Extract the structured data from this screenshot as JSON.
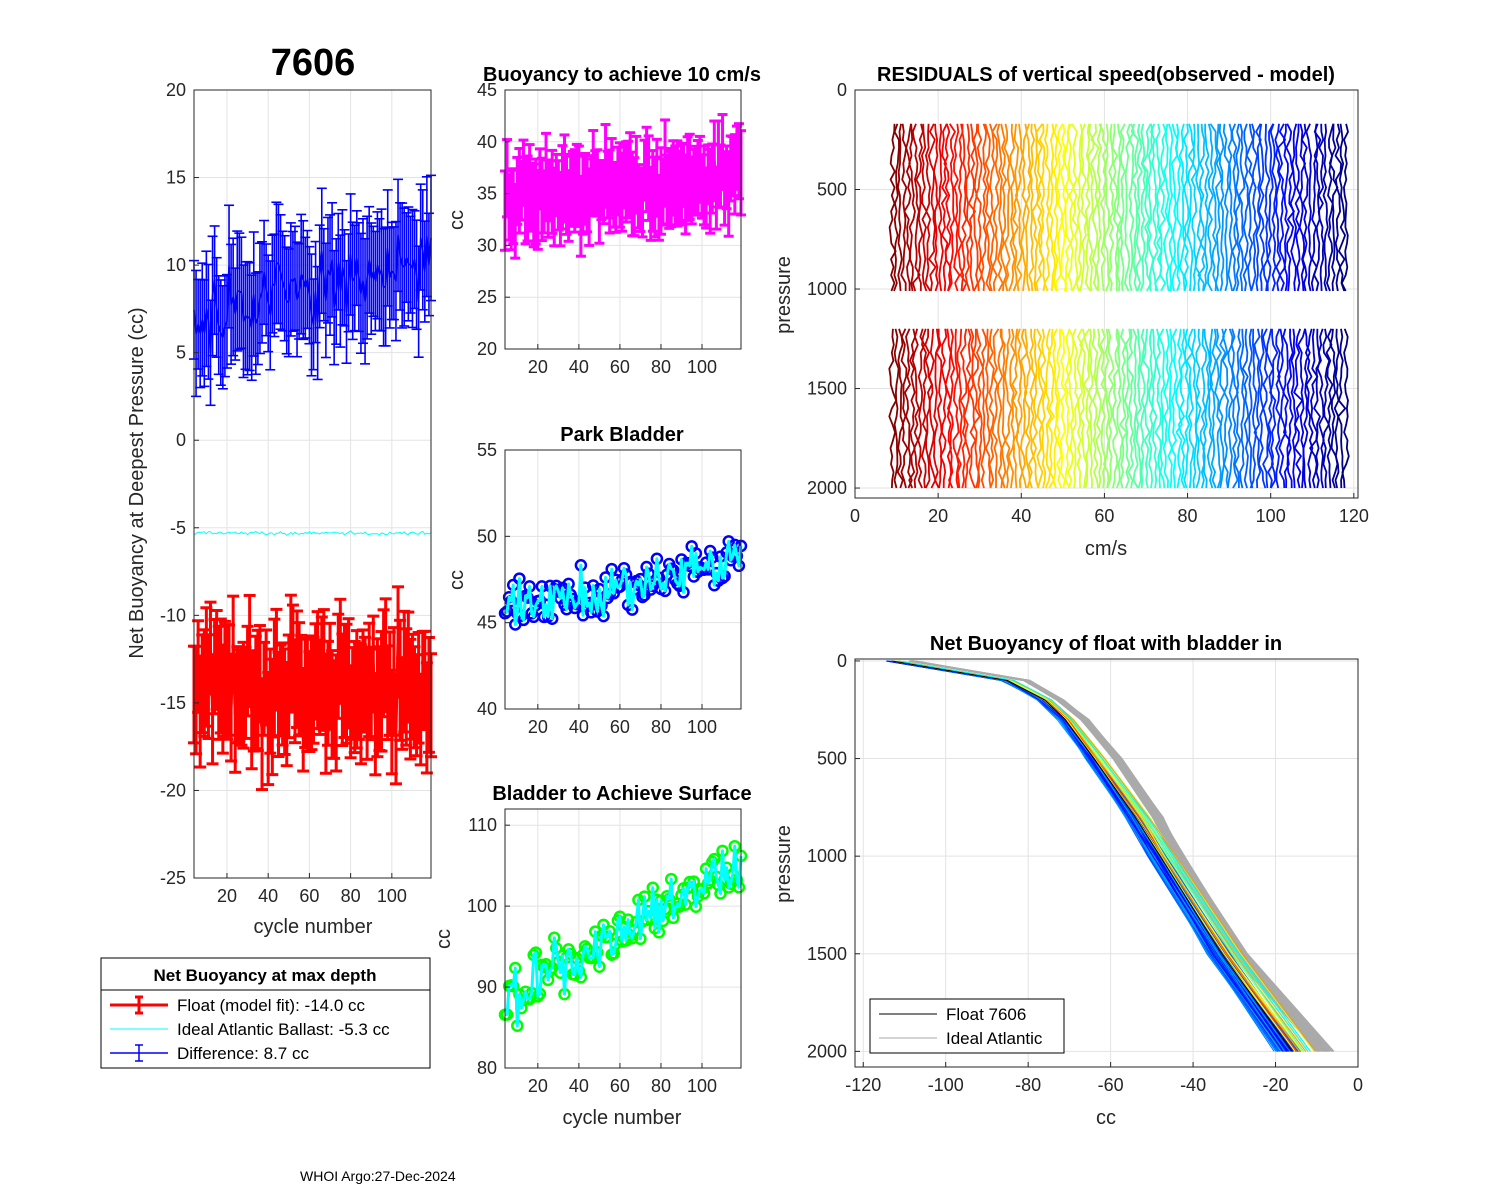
{
  "figure": {
    "float_id": "7606",
    "footer": "WHOI Argo:27-Dec-2024"
  },
  "colors": {
    "float": "#ff0000",
    "ideal": "#00ffff",
    "difference": "#0000ff",
    "buoyancy10": "#ff00ff",
    "park_marker": "#0000ff",
    "park_line": "#00ffff",
    "surface_marker": "#00ff00",
    "surface_line": "#00ffff",
    "ideal_profile": "#aaaaaa",
    "float_profile": "#000000"
  },
  "legend1": {
    "title": "Net Buoyancy at max depth",
    "float_label": "Float (model fit): -14.0 cc",
    "ideal_label": "Ideal Atlantic Ballast:  -5.3 cc",
    "diff_label": "Difference:   8.7 cc"
  },
  "legend2": {
    "float_label": "Float 7606",
    "ideal_label": "Ideal Atlantic"
  },
  "chart_data": [
    {
      "id": "net_buoyancy_max_depth",
      "type": "line",
      "title": "7606",
      "xlabel": "cycle number",
      "ylabel": "Net Buoyancy at Deepest Pressure (cc)",
      "xlim": [
        4,
        119
      ],
      "ylim": [
        -25,
        20
      ],
      "xticks": [
        20,
        40,
        60,
        80,
        100
      ],
      "yticks": [
        -25,
        -20,
        -15,
        -10,
        -5,
        0,
        5,
        10,
        15,
        20
      ],
      "cycles": [
        4,
        119
      ],
      "series": [
        {
          "name": "Float (model fit)",
          "mean": -14.0,
          "spread": 3.2,
          "err": 3.0
        },
        {
          "name": "Ideal Atlantic Ballast",
          "mean": -5.3,
          "spread": 0.15
        },
        {
          "name": "Difference",
          "mean": 8.7,
          "trend": 0.03,
          "spread": 3.0,
          "err": 3.0
        }
      ]
    },
    {
      "id": "buoyancy_10cms",
      "type": "line",
      "title": "Buoyancy to achieve 10 cm/s",
      "xlabel": "",
      "ylabel": "cc",
      "xlim": [
        4,
        119
      ],
      "ylim": [
        20,
        45
      ],
      "xticks": [
        20,
        40,
        60,
        80,
        100
      ],
      "yticks": [
        20,
        25,
        30,
        35,
        40,
        45
      ],
      "series": [
        {
          "name": "buoyancy",
          "mean": 35.5,
          "spread": 2.8,
          "err": 3.5
        }
      ]
    },
    {
      "id": "park_bladder",
      "type": "line",
      "title": "Park Bladder",
      "xlabel": "",
      "ylabel": "cc",
      "xlim": [
        4,
        119
      ],
      "ylim": [
        40,
        55
      ],
      "xticks": [
        20,
        40,
        60,
        80,
        100
      ],
      "yticks": [
        40,
        45,
        50,
        55
      ],
      "series": [
        {
          "name": "park bladder",
          "start": 45.5,
          "end": 49.0,
          "spread": 2.2
        }
      ]
    },
    {
      "id": "bladder_surface",
      "type": "line",
      "title": "Bladder to Achieve Surface",
      "xlabel": "cycle number",
      "ylabel": "cc",
      "xlim": [
        4,
        119
      ],
      "ylim": [
        80,
        112
      ],
      "xticks": [
        20,
        40,
        60,
        80,
        100
      ],
      "yticks": [
        80,
        90,
        100,
        110
      ],
      "series": [
        {
          "name": "surface bladder",
          "start": 88.5,
          "end": 105.0,
          "spread": 5.0
        }
      ]
    },
    {
      "id": "residuals",
      "type": "line",
      "title": "RESIDUALS of vertical speed(observed - model)",
      "xlabel": "cm/s",
      "ylabel": "pressure",
      "xlim": [
        0,
        121
      ],
      "ylim": [
        2050,
        0
      ],
      "xticks": [
        0,
        20,
        40,
        60,
        80,
        100,
        120
      ],
      "yticks": [
        0,
        500,
        1000,
        1500,
        2000
      ],
      "profiles": 115,
      "segments": [
        [
          170,
          1020
        ],
        [
          1200,
          2000
        ]
      ],
      "offset_range": [
        9,
        118
      ]
    },
    {
      "id": "net_buoyancy_profile",
      "type": "line",
      "title": "Net Buoyancy of float with bladder in",
      "xlabel": "cc",
      "ylabel": "pressure",
      "xlim": [
        -122,
        0
      ],
      "ylim": [
        2080,
        -10
      ],
      "xticks": [
        -120,
        -100,
        -80,
        -60,
        -40,
        -20,
        0
      ],
      "yticks": [
        0,
        500,
        1000,
        1500,
        2000
      ],
      "float_profile": {
        "pressure": [
          0,
          100,
          200,
          300,
          500,
          800,
          1000,
          1500,
          2000
        ],
        "cc": [
          -113,
          -85,
          -76,
          -71,
          -64,
          -54,
          -48,
          -33,
          -16
        ]
      },
      "ideal_profile": {
        "pressure": [
          0,
          100,
          200,
          300,
          500,
          800,
          1000,
          1500,
          2000
        ],
        "cc": [
          -108,
          -80,
          -72,
          -66,
          -58,
          -48,
          -43,
          -28,
          -7
        ]
      }
    }
  ]
}
